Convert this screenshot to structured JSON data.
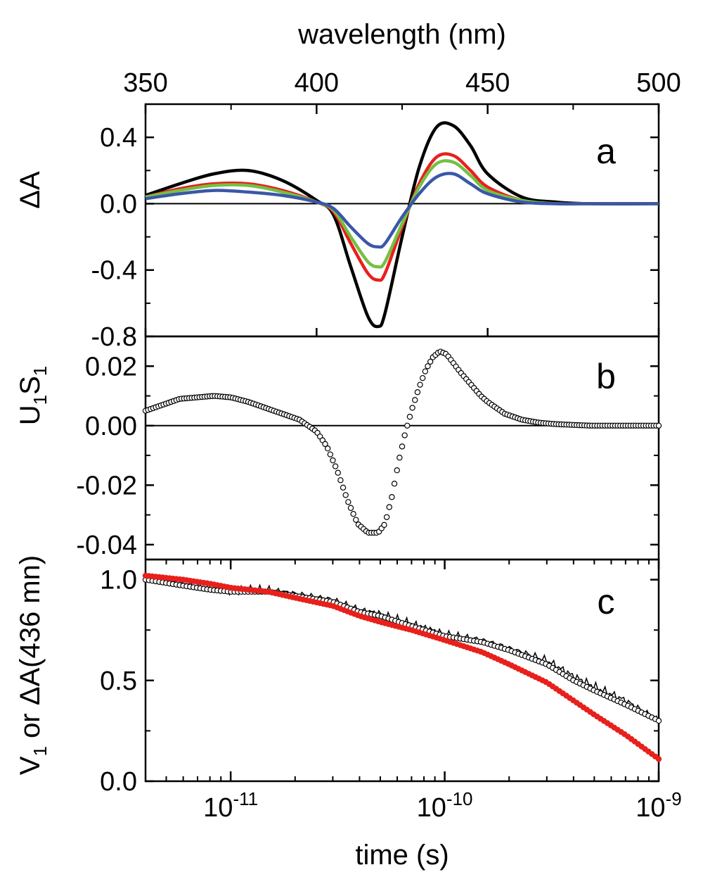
{
  "chart_data": [
    {
      "panel": "a",
      "type": "line",
      "top_axis_label": "wavelength (nm)",
      "ylabel": "ΔA",
      "xlim": [
        350,
        500
      ],
      "ylim": [
        -0.8,
        0.6
      ],
      "x_ticks": [
        350,
        400,
        450,
        500
      ],
      "y_ticks": [
        "0.4",
        "0.0",
        "-0.4",
        "-0.8"
      ],
      "zero_line": true,
      "series": [
        {
          "color": "#000000",
          "x": [
            350,
            360,
            370,
            380,
            390,
            400,
            405,
            410,
            415,
            418,
            420,
            425,
            430,
            435,
            440,
            445,
            450,
            460,
            470,
            480,
            500
          ],
          "y": [
            0.05,
            0.12,
            0.18,
            0.2,
            0.14,
            0.02,
            -0.07,
            -0.38,
            -0.68,
            -0.74,
            -0.66,
            -0.2,
            0.22,
            0.46,
            0.47,
            0.35,
            0.18,
            0.04,
            0.01,
            0.0,
            0.0
          ]
        },
        {
          "color": "#e8201c",
          "x": [
            350,
            360,
            370,
            380,
            390,
            400,
            405,
            410,
            415,
            418,
            420,
            425,
            430,
            435,
            440,
            445,
            450,
            460,
            470,
            480,
            500
          ],
          "y": [
            0.04,
            0.09,
            0.12,
            0.12,
            0.08,
            0.01,
            -0.05,
            -0.24,
            -0.42,
            -0.46,
            -0.42,
            -0.14,
            0.12,
            0.28,
            0.29,
            0.2,
            0.1,
            0.02,
            0.0,
            0.0,
            0.0
          ]
        },
        {
          "color": "#74c043",
          "x": [
            350,
            360,
            370,
            380,
            390,
            400,
            405,
            410,
            415,
            418,
            420,
            425,
            430,
            435,
            440,
            445,
            450,
            460,
            470,
            480,
            500
          ],
          "y": [
            0.04,
            0.08,
            0.11,
            0.11,
            0.07,
            0.01,
            -0.04,
            -0.2,
            -0.35,
            -0.38,
            -0.35,
            -0.12,
            0.1,
            0.24,
            0.25,
            0.17,
            0.08,
            0.02,
            0.0,
            0.0,
            0.0
          ]
        },
        {
          "color": "#3a57a8",
          "x": [
            350,
            360,
            370,
            380,
            390,
            400,
            405,
            410,
            415,
            418,
            420,
            425,
            430,
            435,
            440,
            445,
            450,
            460,
            470,
            480,
            500
          ],
          "y": [
            0.03,
            0.06,
            0.08,
            0.07,
            0.05,
            0.01,
            -0.03,
            -0.14,
            -0.24,
            -0.26,
            -0.24,
            -0.08,
            0.06,
            0.16,
            0.18,
            0.12,
            0.06,
            0.01,
            0.0,
            0.0,
            0.0
          ]
        }
      ]
    },
    {
      "panel": "b",
      "type": "scatter",
      "ylabel_main": "U",
      "ylabel_sub1": "1",
      "ylabel_mid": "S",
      "ylabel_sub2": "1",
      "xlim": [
        350,
        500
      ],
      "ylim": [
        -0.045,
        0.03
      ],
      "y_ticks": [
        "0.02",
        "0.00",
        "-0.02",
        "-0.04"
      ],
      "zero_line": true,
      "marker": "open-circle",
      "x": [
        350,
        355,
        360,
        365,
        370,
        375,
        380,
        385,
        390,
        395,
        400,
        403,
        406,
        409,
        412,
        415,
        418,
        420,
        422,
        424,
        426,
        428,
        430,
        432,
        434,
        436,
        438,
        440,
        442,
        445,
        448,
        450,
        455,
        460,
        465,
        470,
        480,
        490,
        500
      ],
      "y": [
        0.005,
        0.007,
        0.009,
        0.0095,
        0.01,
        0.0095,
        0.008,
        0.006,
        0.004,
        0.002,
        -0.002,
        -0.007,
        -0.015,
        -0.025,
        -0.033,
        -0.036,
        -0.036,
        -0.033,
        -0.024,
        -0.012,
        -0.002,
        0.006,
        0.013,
        0.019,
        0.023,
        0.025,
        0.024,
        0.021,
        0.018,
        0.014,
        0.01,
        0.008,
        0.004,
        0.002,
        0.001,
        0.0005,
        0.0,
        0.0,
        0.0
      ]
    },
    {
      "panel": "c",
      "type": "scatter",
      "xlabel": "time (s)",
      "ylabel_main": "V",
      "ylabel_sub": "1",
      "ylabel_rest": " or ΔA(436 mn)",
      "xscale": "log",
      "xlim": [
        4e-12,
        1e-09
      ],
      "ylim": [
        0.0,
        1.1
      ],
      "x_ticks": [
        {
          "base": "10",
          "exp": "-11",
          "value": 1e-11
        },
        {
          "base": "10",
          "exp": "-10",
          "value": 1e-10
        },
        {
          "base": "10",
          "exp": "-9",
          "value": 1e-09
        }
      ],
      "y_ticks": [
        "1.0",
        "0.5",
        "0.0"
      ],
      "series": [
        {
          "style": "thin-line",
          "color": "#000000",
          "x": [
            4e-12,
            6e-12,
            8e-12,
            1e-11,
            1.5e-11,
            2e-11,
            3e-11,
            4e-11,
            5e-11,
            7e-11,
            1e-10,
            1.5e-10,
            2e-10,
            3e-10,
            4e-10,
            5e-10,
            7e-10,
            1e-09
          ],
          "y": [
            1.0,
            0.98,
            0.96,
            0.95,
            0.95,
            0.93,
            0.9,
            0.85,
            0.83,
            0.78,
            0.73,
            0.7,
            0.66,
            0.6,
            0.52,
            0.47,
            0.4,
            0.3
          ]
        },
        {
          "style": "open-circle",
          "color": "#000000",
          "x": [
            4e-12,
            6e-12,
            8e-12,
            1e-11,
            1.5e-11,
            2e-11,
            3e-11,
            4e-11,
            5e-11,
            7e-11,
            1e-10,
            1.5e-10,
            2e-10,
            3e-10,
            4e-10,
            5e-10,
            7e-10,
            1e-09
          ],
          "y": [
            1.0,
            0.97,
            0.95,
            0.94,
            0.94,
            0.92,
            0.89,
            0.84,
            0.82,
            0.77,
            0.72,
            0.69,
            0.65,
            0.58,
            0.5,
            0.45,
            0.38,
            0.3
          ]
        },
        {
          "style": "filled-circle",
          "color": "#e8201c",
          "x": [
            4e-12,
            6e-12,
            8e-12,
            1e-11,
            1.5e-11,
            2e-11,
            3e-11,
            4e-11,
            5e-11,
            7e-11,
            1e-10,
            1.5e-10,
            2e-10,
            3e-10,
            4e-10,
            5e-10,
            7e-10,
            1e-09
          ],
          "y": [
            1.02,
            1.0,
            0.98,
            0.96,
            0.94,
            0.91,
            0.87,
            0.82,
            0.79,
            0.75,
            0.7,
            0.64,
            0.58,
            0.49,
            0.4,
            0.33,
            0.23,
            0.11
          ]
        }
      ]
    }
  ]
}
